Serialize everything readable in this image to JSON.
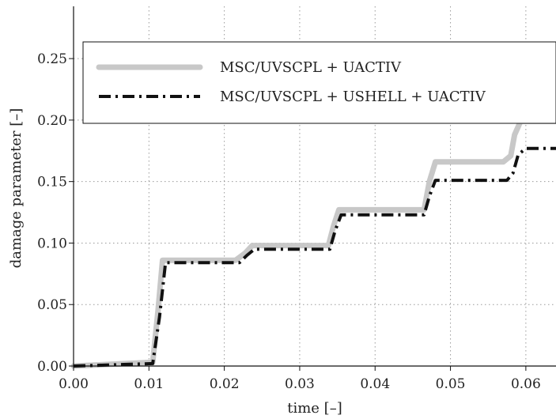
{
  "chart_data": {
    "type": "line",
    "xlabel": "time [–]",
    "ylabel": "damage parameter [–]",
    "xlim": [
      0.0,
      0.064
    ],
    "ylim": [
      0.0,
      0.25
    ],
    "xticks": [
      "0.00",
      "0.01",
      "0.02",
      "0.03",
      "0.04",
      "0.05",
      "0.06"
    ],
    "yticks": [
      "0.00",
      "0.05",
      "0.10",
      "0.15",
      "0.20",
      "0.25"
    ],
    "grid": true,
    "legend_position": "top",
    "series": [
      {
        "name": "MSC/UVSCPL + UACTIV",
        "color": "#c8c8c8",
        "style": "solid",
        "x": [
          0.0,
          0.0105,
          0.0112,
          0.0118,
          0.0215,
          0.0228,
          0.0237,
          0.0338,
          0.0345,
          0.0352,
          0.0465,
          0.0472,
          0.048,
          0.057,
          0.058,
          0.0585,
          0.0593,
          0.064
        ],
        "y": [
          0.0,
          0.003,
          0.045,
          0.086,
          0.086,
          0.092,
          0.098,
          0.098,
          0.114,
          0.127,
          0.127,
          0.15,
          0.166,
          0.166,
          0.171,
          0.188,
          0.199,
          0.199
        ]
      },
      {
        "name": "MSC/UVSCPL + USHELL + UACTIV",
        "color": "#111111",
        "style": "dashdot",
        "x": [
          0.0,
          0.0105,
          0.0114,
          0.0122,
          0.022,
          0.023,
          0.024,
          0.034,
          0.0347,
          0.0355,
          0.0465,
          0.0472,
          0.048,
          0.0575,
          0.0583,
          0.059,
          0.06,
          0.064
        ],
        "y": [
          0.0,
          0.002,
          0.04,
          0.084,
          0.084,
          0.09,
          0.095,
          0.095,
          0.11,
          0.123,
          0.123,
          0.138,
          0.151,
          0.151,
          0.157,
          0.172,
          0.177,
          0.177
        ]
      }
    ]
  }
}
